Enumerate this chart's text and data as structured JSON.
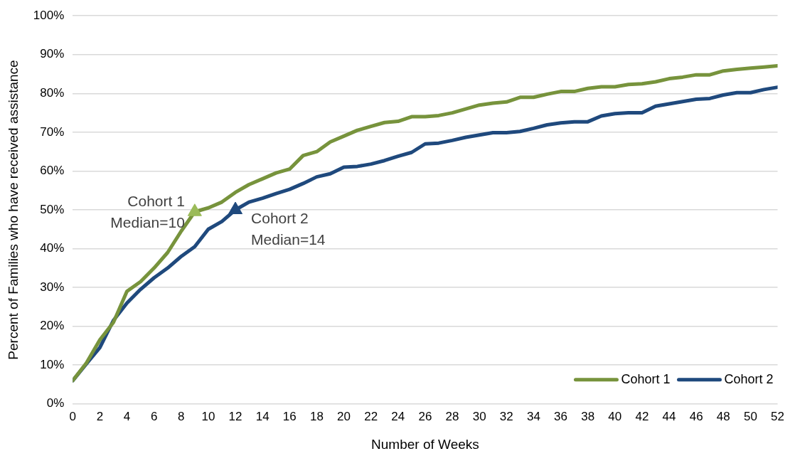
{
  "chart_data": {
    "type": "line",
    "xlabel": "Number of Weeks",
    "ylabel": "Percent of Families who have received assistance",
    "x": [
      0,
      1,
      2,
      3,
      4,
      5,
      6,
      7,
      8,
      9,
      10,
      11,
      12,
      13,
      14,
      15,
      16,
      17,
      18,
      19,
      20,
      21,
      22,
      23,
      24,
      25,
      26,
      27,
      28,
      29,
      30,
      31,
      32,
      33,
      34,
      35,
      36,
      37,
      38,
      39,
      40,
      41,
      42,
      43,
      44,
      45,
      46,
      47,
      48,
      49,
      50,
      51,
      52
    ],
    "series": [
      {
        "name": "Cohort 1",
        "color": "#77933c",
        "values": [
          6,
          10.5,
          16.5,
          21,
          29,
          31.5,
          35,
          39,
          44.5,
          49.5,
          50.5,
          52,
          54.5,
          56.5,
          58,
          59.5,
          60.5,
          64,
          65,
          67.5,
          69,
          70.5,
          71.5,
          72.5,
          72.8,
          74,
          74,
          74.3,
          75,
          76,
          77,
          77.5,
          77.8,
          79,
          79,
          79.8,
          80.5,
          80.5,
          81.3,
          81.7,
          81.7,
          82.3,
          82.5,
          83,
          83.8,
          84.2,
          84.8,
          84.8,
          85.8,
          86.2,
          86.5,
          86.8,
          87.1
        ]
      },
      {
        "name": "Cohort 2",
        "color": "#1f497d",
        "values": [
          6,
          10.3,
          14.5,
          21.5,
          26,
          29.5,
          32.5,
          35,
          38,
          40.5,
          45,
          47,
          50,
          52,
          53,
          54.2,
          55.3,
          56.8,
          58.5,
          59.3,
          61,
          61.2,
          61.8,
          62.7,
          63.8,
          64.8,
          67,
          67.2,
          67.9,
          68.7,
          69.3,
          69.9,
          69.9,
          70.2,
          71,
          71.9,
          72.4,
          72.7,
          72.7,
          74.2,
          74.8,
          75,
          75,
          76.7,
          77.3,
          77.9,
          78.5,
          78.7,
          79.6,
          80.2,
          80.2,
          81,
          81.6
        ]
      },
      {
        "type": "scatter",
        "marker": "triangle",
        "color": "#9bbb59",
        "x": [
          9
        ],
        "values": [
          49.5
        ]
      },
      {
        "type": "scatter",
        "marker": "triangle",
        "color": "#1f497d",
        "x": [
          12
        ],
        "values": [
          50
        ]
      }
    ],
    "marker": "none",
    "line_style": "solid",
    "xlim": [
      0,
      52
    ],
    "xticks": [
      0,
      2,
      4,
      6,
      8,
      10,
      12,
      14,
      16,
      18,
      20,
      22,
      24,
      26,
      28,
      30,
      32,
      34,
      36,
      38,
      40,
      42,
      44,
      46,
      48,
      50,
      52
    ],
    "ylim": [
      0,
      100
    ],
    "yticks": [
      {
        "value": 0,
        "label": "0%"
      },
      {
        "value": 10,
        "label": "10%"
      },
      {
        "value": 20,
        "label": "20%"
      },
      {
        "value": 30,
        "label": "30%"
      },
      {
        "value": 40,
        "label": "40%"
      },
      {
        "value": 50,
        "label": "50%"
      },
      {
        "value": 60,
        "label": "60%"
      },
      {
        "value": 70,
        "label": "70%"
      },
      {
        "value": 80,
        "label": "80%"
      },
      {
        "value": 90,
        "label": "90%"
      },
      {
        "value": 100,
        "label": "100%"
      }
    ],
    "grid": "y",
    "legend": "bottom right",
    "annotations": [
      {
        "text": "Cohort 1\nMedian=10",
        "x": 9,
        "y": 49.5
      },
      {
        "text": "Cohort 2\nMedian=14",
        "x": 12,
        "y": 50
      }
    ]
  }
}
